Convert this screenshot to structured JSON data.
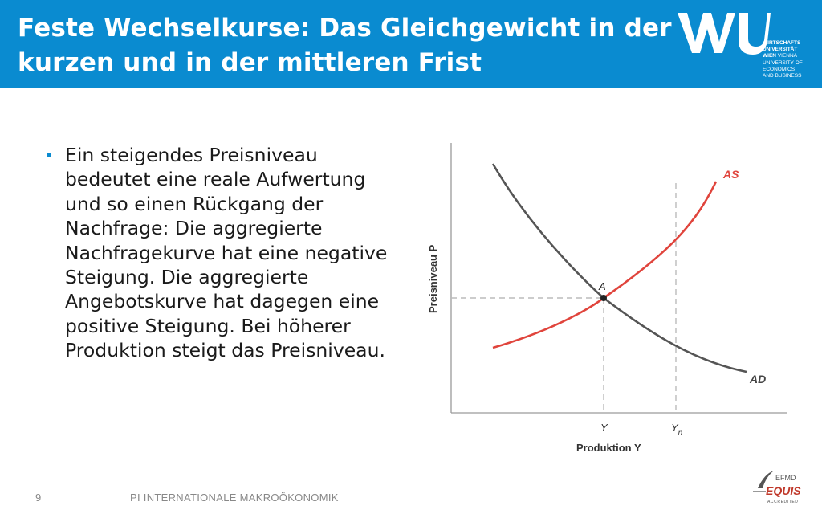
{
  "slide": {
    "title": "Feste Wechselkurse: Das Gleichgewicht in der kurzen und in der mittleren Frist",
    "bullet": "Ein steigendes Preisniveau bedeutet eine reale Aufwertung und so einen Rückgang der Nachfrage: Die aggregierte Nachfragekurve hat eine negative Steigung. Die aggregierte Angebotskurve hat dagegen eine positive Steigung. Bei höherer Produktion steigt das Preisniveau.",
    "page_number": "9",
    "footer": "PI INTERNATIONALE MAKROÖKONOMIK"
  },
  "logo": {
    "lines": [
      "WIRTSCHAFTS",
      "UNIVERSITÄT",
      "WIEN",
      "VIENNA",
      "UNIVERSITY OF",
      "ECONOMICS",
      "AND BUSINESS"
    ]
  },
  "accreditation": {
    "top": "EFMD",
    "main": "EQUIS",
    "sub": "ACCREDITED"
  },
  "diagram": {
    "ylabel": "Preisniveau P",
    "xlabel": "Produktion Y",
    "curve_as": "AS",
    "curve_ad": "AD",
    "point": "A",
    "tick_y": "Y",
    "tick_yn_main": "Y",
    "tick_yn_sub": "n",
    "colors": {
      "as": "#e0443c",
      "ad": "#555555",
      "axis": "#9a9a9a",
      "guide": "#bbbbbb"
    }
  }
}
